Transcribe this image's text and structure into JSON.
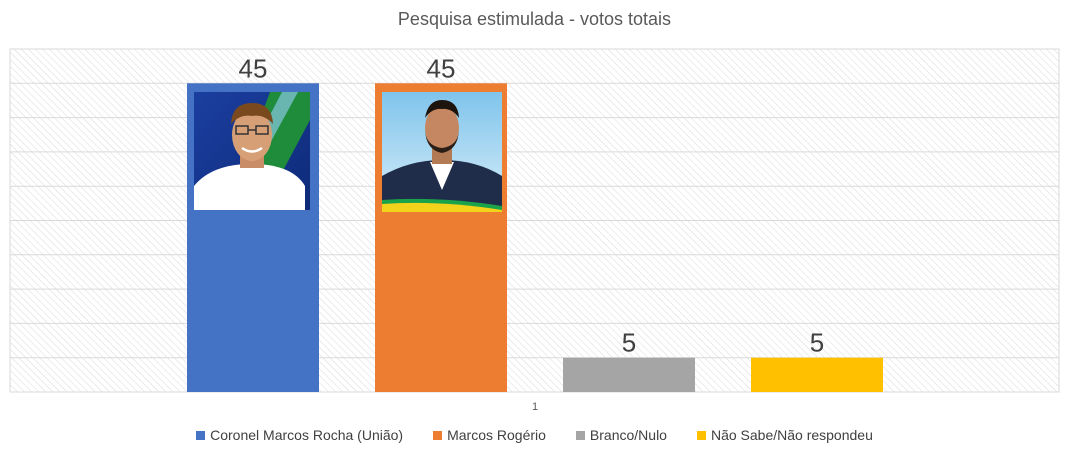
{
  "chart_data": {
    "type": "bar",
    "title": "Pesquisa estimulada - votos totais",
    "categories": [
      "1"
    ],
    "series": [
      {
        "name": "Coronel Marcos Rocha (União)",
        "values": [
          45
        ],
        "color": "#4472C4",
        "data_label": "45",
        "photo": "candidate-photo-marcos-rocha"
      },
      {
        "name": "Marcos Rogério",
        "values": [
          45
        ],
        "color": "#ED7D31",
        "data_label": "45",
        "photo": "candidate-photo-marcos-rogerio"
      },
      {
        "name": "Branco/Nulo",
        "values": [
          5
        ],
        "color": "#A5A5A5",
        "data_label": "5"
      },
      {
        "name": "Não Sabe/Não respondeu",
        "values": [
          5
        ],
        "color": "#FFC000",
        "data_label": "5"
      }
    ],
    "xlabel": "",
    "ylabel": "",
    "ylim": [
      0,
      50
    ],
    "grid": true,
    "legend_position": "bottom"
  }
}
